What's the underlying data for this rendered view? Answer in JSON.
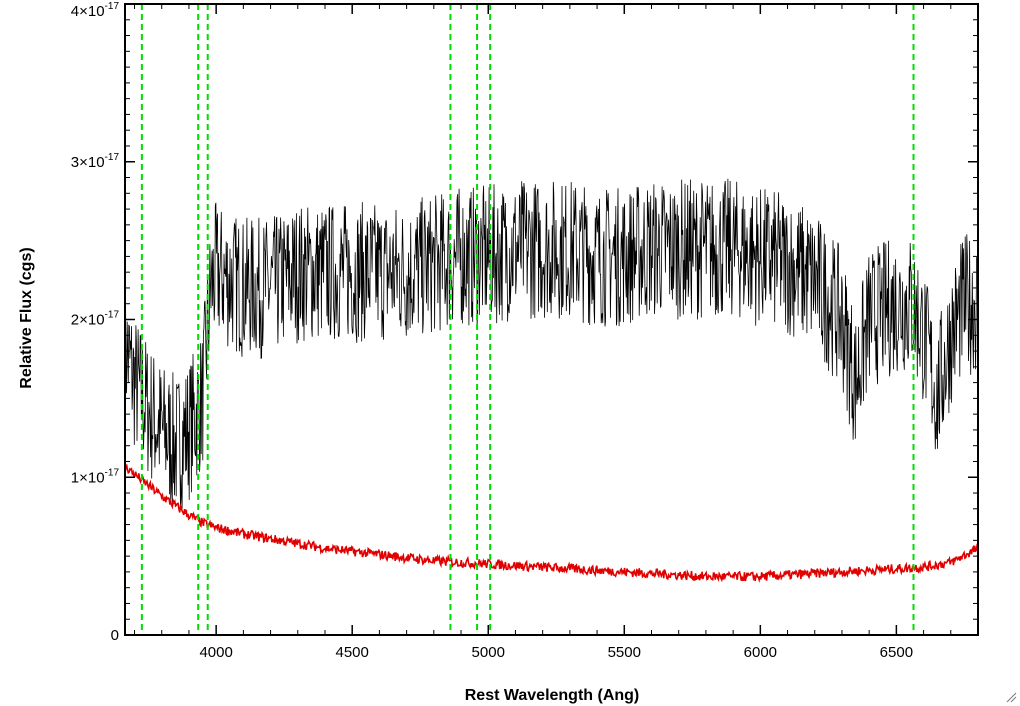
{
  "chart_data": {
    "type": "line",
    "xlabel": "Rest Wavelength (Ang)",
    "ylabel": "Relative Flux (cgs)",
    "xlim": [
      3665,
      6800
    ],
    "ylim": [
      0,
      4e-17
    ],
    "x_ticks": [
      4000,
      4500,
      5000,
      5500,
      6000,
      6500
    ],
    "x_tick_labels": [
      "4000",
      "4500",
      "5000",
      "5500",
      "6000",
      "6500"
    ],
    "y_ticks": [
      0,
      1e-17,
      2e-17,
      3e-17,
      4e-17
    ],
    "y_tick_labels": [
      {
        "mantissa": "0",
        "exponent": ""
      },
      {
        "mantissa": "1×10",
        "exponent": "-17"
      },
      {
        "mantissa": "2×10",
        "exponent": "-17"
      },
      {
        "mantissa": "3×10",
        "exponent": "-17"
      },
      {
        "mantissa": "4×10",
        "exponent": "-17"
      }
    ],
    "grid": false,
    "legend": "none",
    "series": [
      {
        "color": "#000000",
        "x": [
          3670,
          3700,
          3730,
          3760,
          3800,
          3850,
          3900,
          3950,
          3980,
          4000,
          4100,
          4200,
          4300,
          4400,
          4500,
          4600,
          4700,
          4800,
          4900,
          5000,
          5100,
          5200,
          5300,
          5400,
          5500,
          5600,
          5700,
          5800,
          5900,
          6000,
          6100,
          6200,
          6300,
          6350,
          6400,
          6500,
          6560,
          6600,
          6650,
          6700,
          6750,
          6800
        ],
        "y": [
          1.8e-17,
          1.6e-17,
          1.5e-17,
          1.4e-17,
          1.3e-17,
          1.2e-17,
          1.3e-17,
          1.5e-17,
          2.2e-17,
          2.3e-17,
          2.2e-17,
          2.2e-17,
          2.3e-17,
          2.3e-17,
          2.3e-17,
          2.3e-17,
          2.3e-17,
          2.35e-17,
          2.4e-17,
          2.4e-17,
          2.45e-17,
          2.45e-17,
          2.45e-17,
          2.4e-17,
          2.4e-17,
          2.45e-17,
          2.45e-17,
          2.45e-17,
          2.45e-17,
          2.4e-17,
          2.35e-17,
          2.25e-17,
          2e-17,
          1.6e-17,
          2e-17,
          2.1e-17,
          2.1e-17,
          1.9e-17,
          1.5e-17,
          1.9e-17,
          2.1e-17,
          2.1e-17
        ],
        "noise": 4.5e-18
      },
      {
        "color": "#e00000",
        "x": [
          3665,
          3700,
          3750,
          3800,
          3850,
          3900,
          3950,
          4000,
          4100,
          4200,
          4300,
          4400,
          4500,
          4600,
          4700,
          4800,
          4900,
          5000,
          5100,
          5200,
          5300,
          5400,
          5500,
          5600,
          5700,
          5800,
          5900,
          6000,
          6100,
          6200,
          6300,
          6400,
          6500,
          6600,
          6700,
          6800
        ],
        "y": [
          1.07e-17,
          1.02e-17,
          9.5e-18,
          8.8e-18,
          8.2e-18,
          7.6e-18,
          7.1e-18,
          6.8e-18,
          6.4e-18,
          6.1e-18,
          5.8e-18,
          5.5e-18,
          5.3e-18,
          5.1e-18,
          4.9e-18,
          4.7e-18,
          4.6e-18,
          4.5e-18,
          4.4e-18,
          4.3e-18,
          4.2e-18,
          4.1e-18,
          4e-18,
          3.9e-18,
          3.8e-18,
          3.7e-18,
          3.7e-18,
          3.7e-18,
          3.8e-18,
          3.9e-18,
          4e-18,
          4.1e-18,
          4.2e-18,
          4.3e-18,
          4.6e-18,
          5.5e-18
        ],
        "noise": 3e-19
      }
    ],
    "reference_lines": {
      "color": "#00dd00",
      "style": "dashed",
      "x": [
        3727,
        3934,
        3969,
        4861,
        4959,
        5007,
        6563
      ]
    }
  }
}
